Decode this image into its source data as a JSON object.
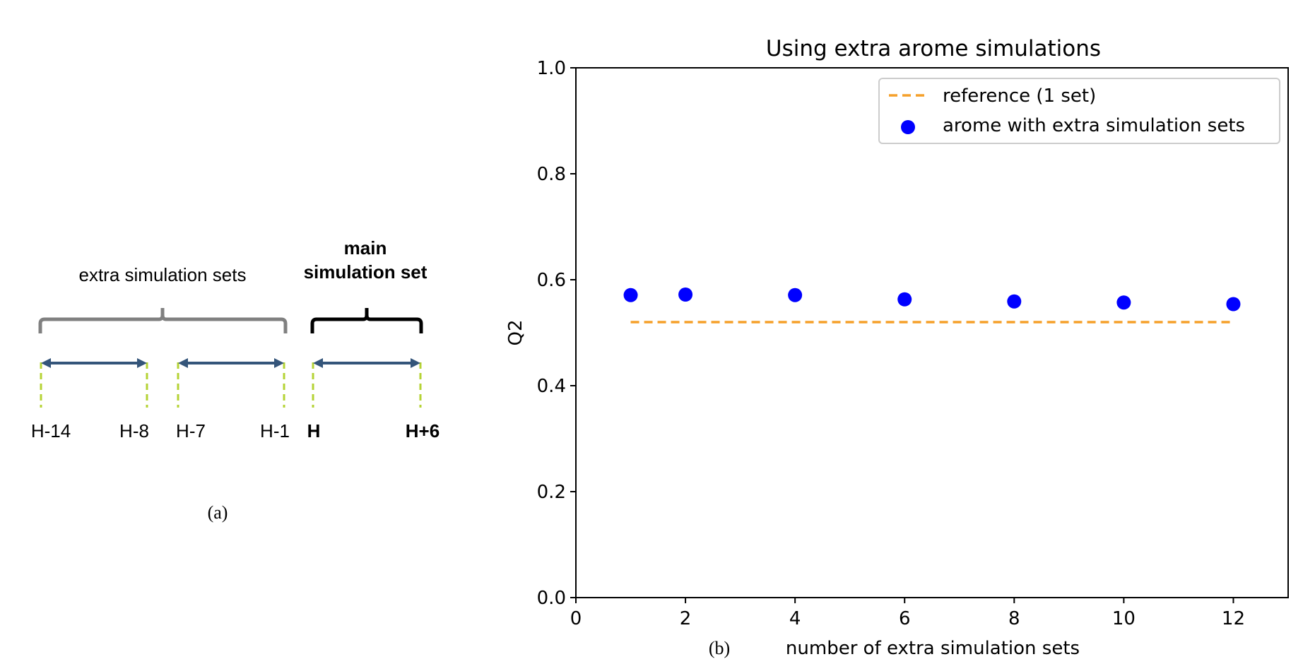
{
  "panel_a": {
    "group_extra_label": "extra simulation sets",
    "group_main_label_line1": "main",
    "group_main_label_line2": "simulation set",
    "ticks": [
      "H-14",
      "H-8",
      "H-7",
      "H-1",
      "H",
      "H+6"
    ],
    "caption": "(a)",
    "colors": {
      "arrow": "#34557a",
      "dash": "#b5d334",
      "brace_extra": "#808080",
      "brace_main": "#000000"
    }
  },
  "panel_b": {
    "caption": "(b)"
  },
  "chart_data": {
    "type": "scatter",
    "title": "Using extra arome simulations",
    "xlabel": "number of extra simulation sets",
    "ylabel": "Q2",
    "xlim": [
      0,
      13
    ],
    "ylim": [
      0.0,
      1.0
    ],
    "xticks": [
      0,
      2,
      4,
      6,
      8,
      10,
      12
    ],
    "yticks": [
      0.0,
      0.2,
      0.4,
      0.6,
      0.8,
      1.0
    ],
    "xtick_labels": [
      "0",
      "2",
      "4",
      "6",
      "8",
      "10",
      "12"
    ],
    "ytick_labels": [
      "0.0",
      "0.2",
      "0.4",
      "0.6",
      "0.8",
      "1.0"
    ],
    "legend_position": "top-right",
    "series": [
      {
        "name": "reference (1 set)",
        "kind": "dashed-line",
        "color": "#f5a02a",
        "x": [
          1,
          12
        ],
        "y": [
          0.52,
          0.52
        ]
      },
      {
        "name": "arome with extra simulation sets",
        "kind": "points",
        "color": "#0000ff",
        "x": [
          1,
          2,
          4,
          6,
          8,
          10,
          12
        ],
        "y": [
          0.571,
          0.572,
          0.571,
          0.563,
          0.559,
          0.557,
          0.554
        ]
      }
    ]
  }
}
